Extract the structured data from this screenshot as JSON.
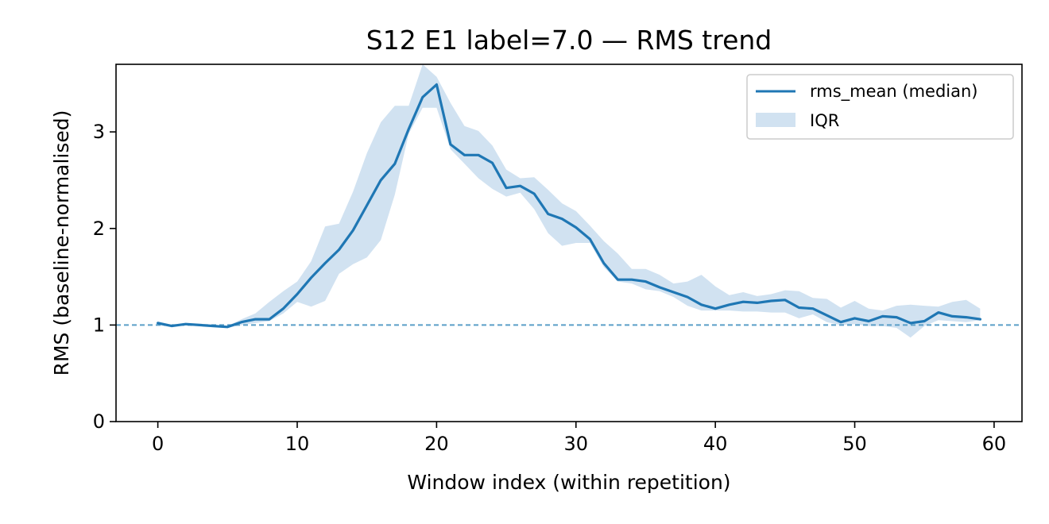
{
  "chart_data": {
    "type": "line",
    "title": "S12 E1 label=7.0 — RMS trend",
    "xlabel": "Window index (within repetition)",
    "ylabel": "RMS (baseline-normalised)",
    "xlim": [
      -3,
      62
    ],
    "ylim": [
      0,
      3.7
    ],
    "xticks": [
      0,
      10,
      20,
      30,
      40,
      50,
      60
    ],
    "yticks": [
      0,
      1,
      2,
      3
    ],
    "grid": false,
    "legend_position": "top-right",
    "baseline": {
      "y": 1.0,
      "style": "dashed",
      "color": "#5b9fc8"
    },
    "colors": {
      "line": "#1f77b4",
      "band": "#b9d3e9"
    },
    "series": [
      {
        "name": "rms_mean (median)",
        "x": [
          0,
          1,
          2,
          3,
          4,
          5,
          6,
          7,
          8,
          9,
          10,
          11,
          12,
          13,
          14,
          15,
          16,
          17,
          18,
          19,
          20,
          21,
          22,
          23,
          24,
          25,
          26,
          27,
          28,
          29,
          30,
          31,
          32,
          33,
          34,
          35,
          36,
          37,
          38,
          39,
          40,
          41,
          42,
          43,
          44,
          45,
          46,
          47,
          48,
          49,
          50,
          51,
          52,
          53,
          54,
          55,
          56,
          57,
          58,
          59
        ],
        "y": [
          1.02,
          0.99,
          1.01,
          1.0,
          0.99,
          0.98,
          1.03,
          1.06,
          1.06,
          1.17,
          1.32,
          1.49,
          1.64,
          1.78,
          1.98,
          2.24,
          2.5,
          2.67,
          3.03,
          3.36,
          3.49,
          2.87,
          2.76,
          2.76,
          2.68,
          2.42,
          2.44,
          2.36,
          2.15,
          2.1,
          2.01,
          1.89,
          1.64,
          1.47,
          1.47,
          1.45,
          1.39,
          1.34,
          1.29,
          1.21,
          1.17,
          1.21,
          1.24,
          1.23,
          1.25,
          1.26,
          1.18,
          1.17,
          1.1,
          1.03,
          1.07,
          1.04,
          1.09,
          1.08,
          1.02,
          1.04,
          1.13,
          1.09,
          1.08,
          1.06
        ]
      }
    ],
    "band": {
      "name": "IQR",
      "x": [
        0,
        1,
        2,
        3,
        4,
        5,
        6,
        7,
        8,
        9,
        10,
        11,
        12,
        13,
        14,
        15,
        16,
        17,
        18,
        19,
        20,
        21,
        22,
        23,
        24,
        25,
        26,
        27,
        28,
        29,
        30,
        31,
        32,
        33,
        34,
        35,
        36,
        37,
        38,
        39,
        40,
        41,
        42,
        43,
        44,
        45,
        46,
        47,
        48,
        49,
        50,
        51,
        52,
        53,
        54,
        55,
        56,
        57,
        58,
        59
      ],
      "lower": [
        1.0,
        0.98,
        1.0,
        0.99,
        0.98,
        0.97,
        1.0,
        1.02,
        1.04,
        1.12,
        1.24,
        1.19,
        1.25,
        1.53,
        1.63,
        1.7,
        1.88,
        2.35,
        2.98,
        3.25,
        3.25,
        2.82,
        2.67,
        2.52,
        2.41,
        2.33,
        2.37,
        2.2,
        1.95,
        1.82,
        1.85,
        1.85,
        1.6,
        1.45,
        1.43,
        1.37,
        1.35,
        1.29,
        1.2,
        1.15,
        1.15,
        1.15,
        1.14,
        1.14,
        1.13,
        1.13,
        1.07,
        1.11,
        1.03,
        1.0,
        1.01,
        0.99,
        0.99,
        0.97,
        0.87,
        0.99,
        1.05,
        1.04,
        1.03,
        1.05
      ],
      "upper": [
        1.04,
        1.0,
        1.02,
        1.01,
        1.0,
        0.99,
        1.06,
        1.12,
        1.24,
        1.35,
        1.45,
        1.66,
        2.02,
        2.05,
        2.38,
        2.78,
        3.1,
        3.27,
        3.27,
        3.7,
        3.57,
        3.3,
        3.06,
        3.01,
        2.86,
        2.61,
        2.52,
        2.53,
        2.4,
        2.26,
        2.18,
        2.03,
        1.87,
        1.74,
        1.58,
        1.58,
        1.52,
        1.43,
        1.45,
        1.52,
        1.4,
        1.31,
        1.34,
        1.3,
        1.32,
        1.36,
        1.35,
        1.28,
        1.27,
        1.18,
        1.25,
        1.17,
        1.15,
        1.2,
        1.21,
        1.2,
        1.19,
        1.24,
        1.26,
        1.17
      ]
    }
  }
}
